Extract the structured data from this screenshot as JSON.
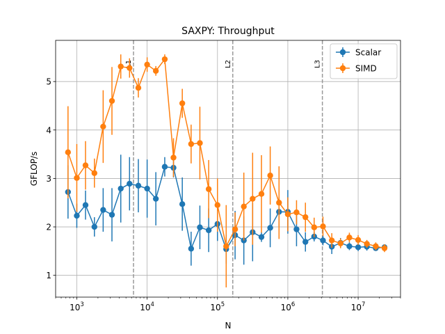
{
  "chart_data": {
    "type": "line",
    "title": "SAXPY: Throughput",
    "xlabel": "N",
    "ylabel": "GFLOP/s",
    "xscale": "log",
    "xlim": [
      500,
      40000000
    ],
    "ylim": [
      0.55,
      5.85
    ],
    "grid": true,
    "legend_position": "top-right",
    "x_tick_labels": [
      {
        "value": 1000,
        "base": "10",
        "exp": "3"
      },
      {
        "value": 10000,
        "base": "10",
        "exp": "4"
      },
      {
        "value": 100000,
        "base": "10",
        "exp": "5"
      },
      {
        "value": 1000000,
        "base": "10",
        "exp": "6"
      },
      {
        "value": 10000000,
        "base": "10",
        "exp": "7"
      }
    ],
    "y_ticks": [
      1,
      2,
      3,
      4,
      5
    ],
    "vlines": [
      {
        "label": "L1",
        "x": 6400
      },
      {
        "label": "L2",
        "x": 165000
      },
      {
        "label": "L3",
        "x": 3100000
      }
    ],
    "x": [
      750,
      1000,
      1330,
      1780,
      2370,
      3160,
      4220,
      5620,
      7500,
      10000,
      13300,
      17800,
      23700,
      31600,
      42200,
      56200,
      75000,
      100000,
      133000,
      178000,
      237000,
      316000,
      422000,
      562000,
      750000,
      1000000,
      1330000,
      1780000,
      2370000,
      3160000,
      4220000,
      5620000,
      7500000,
      10000000,
      13300000,
      17800000,
      23700000
    ],
    "series": [
      {
        "name": "Scalar",
        "color": "#1f77b4",
        "values": [
          2.72,
          2.23,
          2.45,
          2.0,
          2.35,
          2.25,
          2.79,
          2.89,
          2.85,
          2.79,
          2.58,
          3.24,
          3.22,
          2.47,
          1.55,
          1.99,
          1.93,
          2.06,
          1.54,
          1.83,
          1.72,
          1.89,
          1.79,
          1.98,
          2.31,
          2.31,
          1.95,
          1.69,
          1.8,
          1.72,
          1.59,
          1.67,
          1.6,
          1.58,
          1.59,
          1.56,
          1.58
        ],
        "err": [
          0.55,
          0.25,
          0.3,
          0.2,
          0.45,
          0.55,
          0.7,
          0.55,
          0.55,
          0.6,
          0.55,
          0.2,
          0.2,
          0.55,
          0.35,
          0.45,
          0.45,
          0.35,
          0.3,
          0.5,
          0.5,
          0.6,
          0.1,
          0.4,
          0.3,
          0.45,
          0.35,
          0.2,
          0.1,
          0.1,
          0.15,
          0.1,
          0.08,
          0.08,
          0.08,
          0.05,
          0.05
        ]
      },
      {
        "name": "SIMD",
        "color": "#ff7f0e",
        "values": [
          3.54,
          3.01,
          3.27,
          3.11,
          4.07,
          4.6,
          5.31,
          5.28,
          4.87,
          5.35,
          5.22,
          5.46,
          3.43,
          4.55,
          3.71,
          3.73,
          2.78,
          2.45,
          1.6,
          1.95,
          2.42,
          2.58,
          2.68,
          3.06,
          2.5,
          2.26,
          2.3,
          2.2,
          1.99,
          2.01,
          1.72,
          1.66,
          1.78,
          1.73,
          1.65,
          1.6,
          1.56
        ],
        "err": [
          0.95,
          0.7,
          0.5,
          0.3,
          0.75,
          0.7,
          0.25,
          0.2,
          0.2,
          0.15,
          0.1,
          0.1,
          0.4,
          0.3,
          0.4,
          0.75,
          0.6,
          0.55,
          0.85,
          0.35,
          0.7,
          0.95,
          0.8,
          0.6,
          0.75,
          0.35,
          0.25,
          0.3,
          0.2,
          0.2,
          0.15,
          0.1,
          0.1,
          0.1,
          0.08,
          0.08,
          0.08
        ]
      }
    ]
  }
}
